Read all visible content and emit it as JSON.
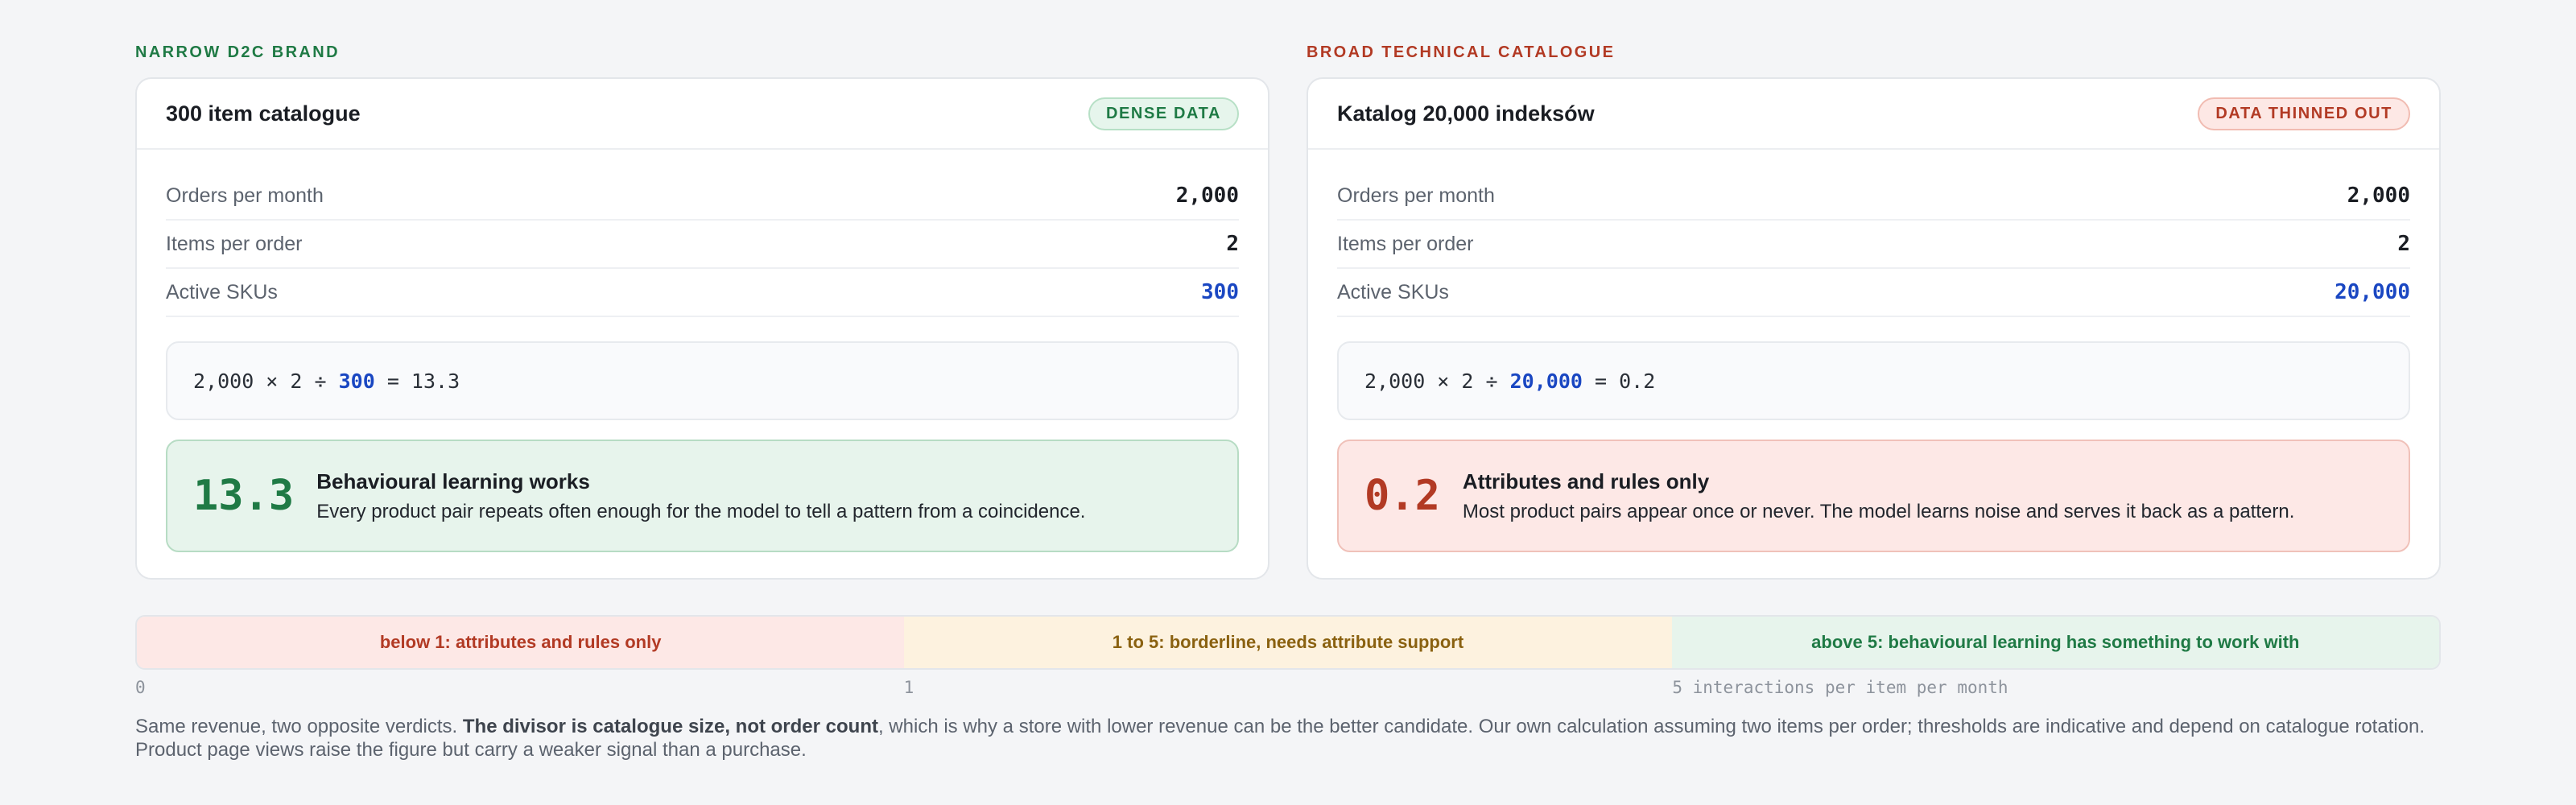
{
  "narrow": {
    "kicker": "NARROW D2C BRAND",
    "title": "300 item catalogue",
    "badge": "DENSE DATA",
    "rows": [
      {
        "label": "Orders per month",
        "value": "2,000"
      },
      {
        "label": "Items per order",
        "value": "2"
      },
      {
        "label": "Active SKUs",
        "value": "300"
      }
    ],
    "formula": {
      "prefix": "2,000 × 2 ÷ ",
      "divisor": "300",
      "suffix": " = 13.3"
    },
    "verdict": {
      "number": "13.3",
      "title": "Behavioural learning works",
      "text": "Every product pair repeats often enough for the model to tell a pattern from a coincidence."
    }
  },
  "broad": {
    "kicker": "BROAD TECHNICAL CATALOGUE",
    "title": "Katalog 20,000 indeksów",
    "badge": "DATA THINNED OUT",
    "rows": [
      {
        "label": "Orders per month",
        "value": "2,000"
      },
      {
        "label": "Items per order",
        "value": "2"
      },
      {
        "label": "Active SKUs",
        "value": "20,000"
      }
    ],
    "formula": {
      "prefix": "2,000 × 2 ÷ ",
      "divisor": "20,000",
      "suffix": " = 0.2"
    },
    "verdict": {
      "number": "0.2",
      "title": "Attributes and rules only",
      "text": "Most product pairs appear once or never. The model learns noise and serves it back as a pattern."
    }
  },
  "scale": {
    "segments": [
      "below 1: attributes and rules only",
      "1 to 5: borderline, needs attribute support",
      "above 5: behavioural learning has something to work with"
    ],
    "ticks": [
      "0",
      "1",
      "5 interactions per item per month"
    ]
  },
  "note": {
    "before": "Same revenue, two opposite verdicts. ",
    "bold": "The divisor is catalogue size, not order count",
    "after": ", which is why a store with lower revenue can be the better candidate. Our own calculation assuming two items per order; thresholds are indicative and depend on catalogue rotation. Product page views raise the figure but carry a weaker signal than a purchase."
  },
  "colors": {
    "green": "#1f7a45",
    "red": "#b23a24",
    "amber": "#8a6110",
    "blue": "#1a47c2"
  }
}
